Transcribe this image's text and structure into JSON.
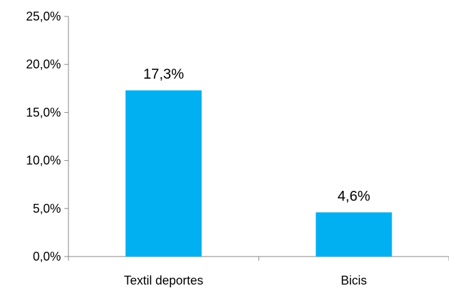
{
  "chart_data": {
    "type": "bar",
    "categories": [
      "Textil deportes",
      "Bicis"
    ],
    "values": [
      17.3,
      4.6
    ],
    "data_labels": [
      "17,3%",
      "4,6%"
    ],
    "title": "",
    "xlabel": "",
    "ylabel": "",
    "ylim": [
      0,
      25
    ],
    "yticks": [
      0,
      5,
      10,
      15,
      20,
      25
    ],
    "ytick_labels": [
      "0,0%",
      "5,0%",
      "10,0%",
      "15,0%",
      "20,0%",
      "25,0%"
    ],
    "bar_color": "#00B0F0",
    "grid": false,
    "legend": "none"
  }
}
